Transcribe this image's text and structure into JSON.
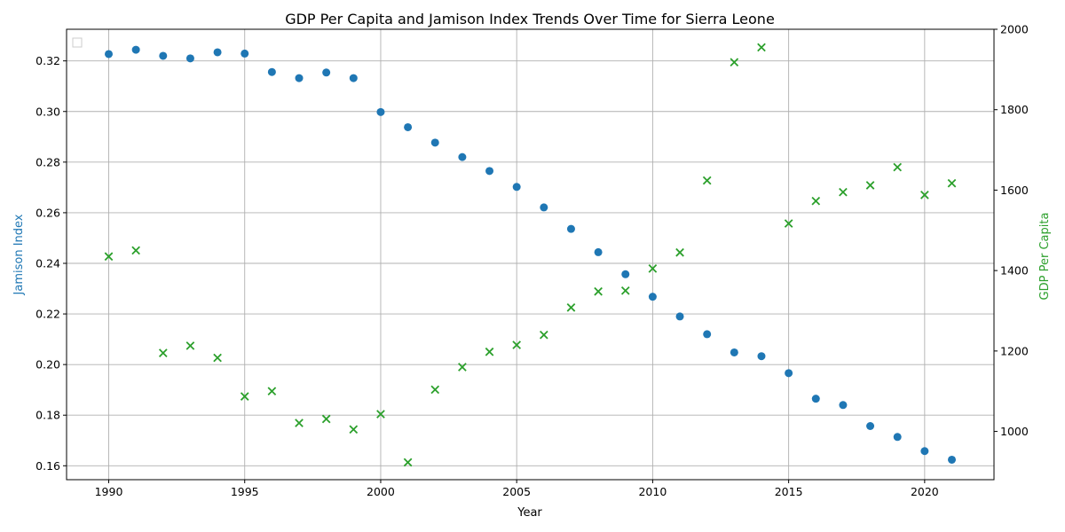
{
  "chart_data": {
    "type": "scatter",
    "title": "GDP Per Capita and Jamison Index Trends Over Time for Sierra Leone",
    "xlabel": "Year",
    "ylabel_left": "Jamison Index",
    "ylabel_right": "GDP Per Capita",
    "xlim": [
      1988.45,
      1992.55
    ],
    "ylim_left": [
      0.1545,
      0.3325
    ],
    "ylim_right": [
      880,
      2000
    ],
    "x_ticks": [
      1990,
      1995,
      2000,
      2005,
      2010,
      2015,
      2020
    ],
    "y_left_ticks": [
      0.16,
      0.18,
      0.2,
      0.22,
      0.24,
      0.26,
      0.28,
      0.3,
      0.32
    ],
    "y_left_tick_labels": [
      "0.16",
      "0.18",
      "0.20",
      "0.22",
      "0.24",
      "0.26",
      "0.28",
      "0.30",
      "0.32"
    ],
    "y_right_ticks": [
      1000,
      1200,
      1400,
      1600,
      1800,
      2000
    ],
    "grid": true,
    "legend": "top-left (empty)",
    "series": [
      {
        "axis": "left",
        "marker": "circle",
        "color": "#1f77b4",
        "x": [
          1990,
          1991,
          1992,
          1993,
          1994,
          1995,
          1996,
          1997,
          1998,
          1999,
          2000,
          2001,
          2002,
          2003,
          2004,
          2005,
          2006,
          2007,
          2008,
          2009,
          2010,
          2011,
          2012,
          2013,
          2014,
          2015,
          2016,
          2017,
          2018,
          2019,
          2020,
          2021
        ],
        "values": [
          0.3227,
          0.3244,
          0.322,
          0.321,
          0.3234,
          0.3229,
          0.3156,
          0.3132,
          0.3154,
          0.3132,
          0.2998,
          0.2938,
          0.2877,
          0.282,
          0.2765,
          0.2702,
          0.2621,
          0.2536,
          0.2444,
          0.2357,
          0.2268,
          0.219,
          0.212,
          0.2048,
          0.2033,
          0.1966,
          0.1865,
          0.184,
          0.1757,
          0.1714,
          0.1658,
          0.1624
        ]
      },
      {
        "axis": "right",
        "marker": "x",
        "color": "#2ca02c",
        "x": [
          1990,
          1991,
          1992,
          1993,
          1994,
          1995,
          1996,
          1997,
          1998,
          1999,
          2000,
          2001,
          2002,
          2003,
          2004,
          2005,
          2006,
          2007,
          2008,
          2009,
          2010,
          2011,
          2012,
          2013,
          2014,
          2015,
          2016,
          2017,
          2018,
          2019,
          2020,
          2021
        ],
        "values": [
          1435,
          1450,
          1195,
          1213,
          1183,
          1087,
          1100,
          1021,
          1031,
          1005,
          1043,
          923,
          1104,
          1160,
          1198,
          1215,
          1240,
          1308,
          1348,
          1350,
          1405,
          1445,
          1624,
          1918,
          1955,
          1517,
          1573,
          1595,
          1612,
          1657,
          1588,
          1617
        ]
      }
    ]
  }
}
